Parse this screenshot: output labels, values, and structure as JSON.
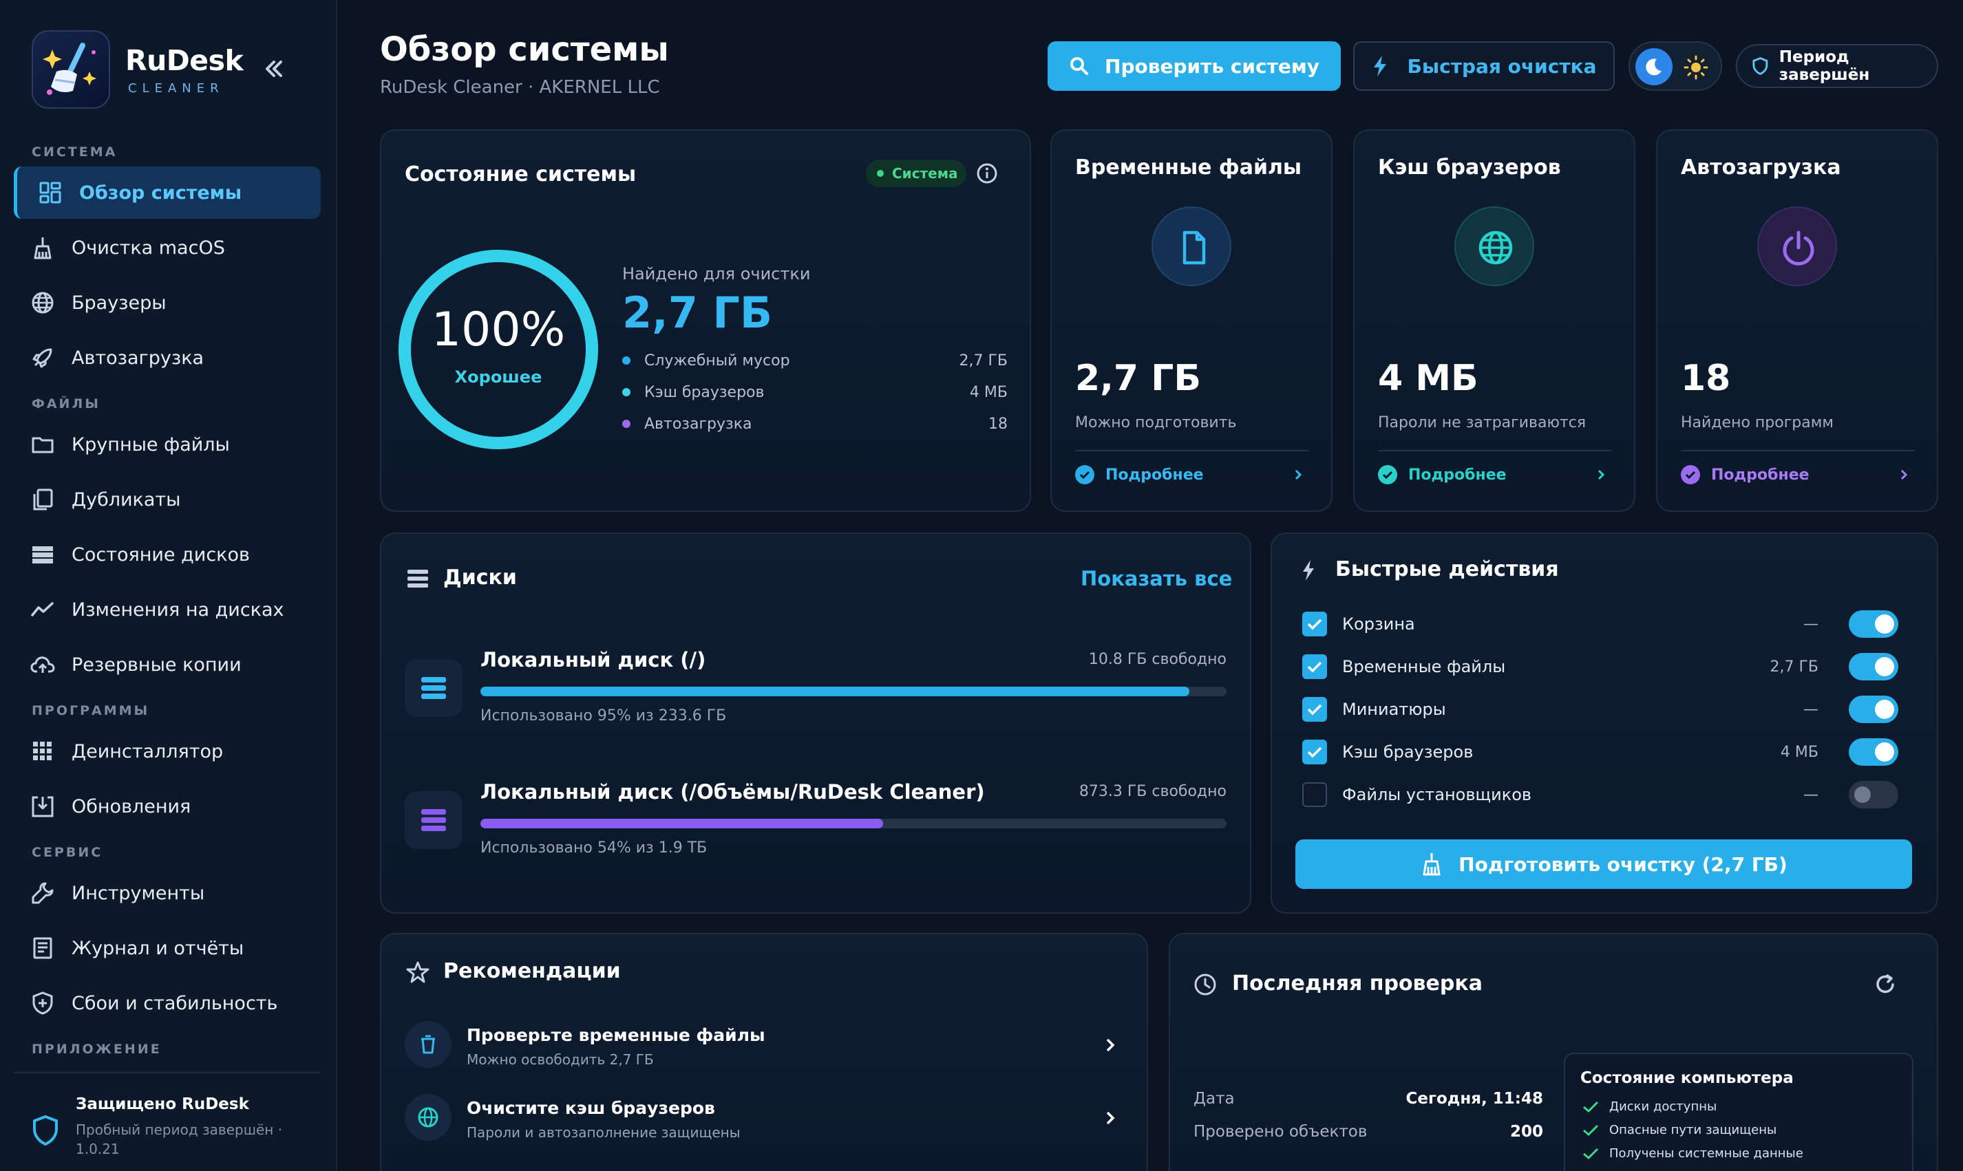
{
  "brand": {
    "name": "RuDesk",
    "sub": "CLEANER"
  },
  "sidebar": {
    "sections": [
      {
        "label": "СИСТЕМА"
      },
      {
        "label": "ФАЙЛЫ"
      },
      {
        "label": "ПРОГРАММЫ"
      },
      {
        "label": "СЕРВИС"
      },
      {
        "label": "ПРИЛОЖЕНИЕ"
      }
    ],
    "items": [
      {
        "label": "Обзор системы",
        "icon": "dashboard-icon"
      },
      {
        "label": "Очистка macOS",
        "icon": "broom-icon"
      },
      {
        "label": "Браузеры",
        "icon": "globe-icon"
      },
      {
        "label": "Автозагрузка",
        "icon": "rocket-icon"
      },
      {
        "label": "Крупные файлы",
        "icon": "folder-icon"
      },
      {
        "label": "Дубликаты",
        "icon": "copy-icon"
      },
      {
        "label": "Состояние дисков",
        "icon": "drives-icon"
      },
      {
        "label": "Изменения на дисках",
        "icon": "trend-icon"
      },
      {
        "label": "Резервные копии",
        "icon": "cloud-upload-icon"
      },
      {
        "label": "Деинсталлятор",
        "icon": "grid-icon"
      },
      {
        "label": "Обновления",
        "icon": "download-box-icon"
      },
      {
        "label": "Инструменты",
        "icon": "wrench-icon"
      },
      {
        "label": "Журнал и отчёты",
        "icon": "report-icon"
      },
      {
        "label": "Сбои и стабильность",
        "icon": "shield-plus-icon"
      }
    ],
    "footer": {
      "title": "Защищено RuDesk",
      "sub": "Пробный период завершён · 1.0.21"
    }
  },
  "header": {
    "title": "Обзор системы",
    "subtitle": "RuDesk Cleaner · AKERNEL LLC",
    "check_button": "Проверить систему",
    "quick_button": "Быстрая очистка",
    "period": "Период завершён"
  },
  "status_card": {
    "title": "Состояние системы",
    "badge": "Система",
    "score": "100%",
    "score_fraction": 1.0,
    "score_label": "Хорошее",
    "found_label": "Найдено для очистки",
    "found_value": "2,7 ГБ",
    "legend": [
      {
        "label": "Служебный мусор",
        "value": "2,7 ГБ",
        "color": "#2aaee9"
      },
      {
        "label": "Кэш браузеров",
        "value": "4 МБ",
        "color": "#3fd1e6"
      },
      {
        "label": "Автозагрузка",
        "value": "18",
        "color": "#9b6cf0"
      }
    ]
  },
  "mini_cards": [
    {
      "title": "Временные файлы",
      "value": "2,7 ГБ",
      "sub": "Можно подготовить",
      "more": "Подробнее",
      "color": "#2aaee9"
    },
    {
      "title": "Кэш браузеров",
      "value": "4 МБ",
      "sub": "Пароли не затрагиваются",
      "more": "Подробнее",
      "color": "#2ad1c9"
    },
    {
      "title": "Автозагрузка",
      "value": "18",
      "sub": "Найдено программ",
      "more": "Подробнее",
      "color": "#9b6cf0"
    }
  ],
  "disks": {
    "title": "Диски",
    "show_all": "Показать все",
    "items": [
      {
        "name": "Локальный диск (/)",
        "free": "10.8 ГБ свободно",
        "used": "Использовано 95% из 233.6 ГБ",
        "fraction": 0.95,
        "color": "#2aaee9"
      },
      {
        "name": "Локальный диск (/Объёмы/RuDesk Cleaner)",
        "free": "873.3 ГБ свободно",
        "used": "Использовано 54% из 1.9 ТБ",
        "fraction": 0.54,
        "color": "#8a5cf0"
      }
    ]
  },
  "quick_actions": {
    "title": "Быстрые действия",
    "items": [
      {
        "label": "Корзина",
        "size": "—",
        "checked": true
      },
      {
        "label": "Временные файлы",
        "size": "2,7 ГБ",
        "checked": true
      },
      {
        "label": "Миниатюры",
        "size": "—",
        "checked": true
      },
      {
        "label": "Кэш браузеров",
        "size": "4 МБ",
        "checked": true
      },
      {
        "label": "Файлы установщиков",
        "size": "—",
        "checked": false
      }
    ],
    "button": "Подготовить очистку (2,7 ГБ)"
  },
  "recommendations": {
    "title": "Рекомендации",
    "items": [
      {
        "title": "Проверьте временные файлы",
        "sub": "Можно освободить 2,7 ГБ"
      },
      {
        "title": "Очистите кэш браузеров",
        "sub": "Пароли и автозаполнение защищены"
      }
    ]
  },
  "last_check": {
    "title": "Последняя проверка",
    "rows": [
      {
        "label": "Дата",
        "value": "Сегодня, 11:48"
      },
      {
        "label": "Проверено объектов",
        "value": "200"
      }
    ],
    "status_title": "Состояние компьютера",
    "status_items": [
      "Диски доступны",
      "Опасные пути защищены",
      "Получены системные данные"
    ]
  }
}
